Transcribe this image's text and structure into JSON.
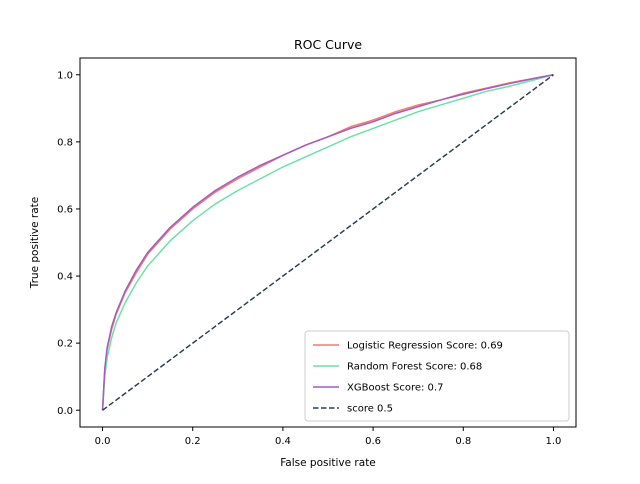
{
  "chart_data": {
    "type": "line",
    "title": "ROC Curve",
    "xlabel": "False positive rate",
    "ylabel": "True positive rate",
    "xlim": [
      -0.05,
      1.05
    ],
    "ylim": [
      -0.05,
      1.05
    ],
    "xticks": [
      "0.0",
      "0.2",
      "0.4",
      "0.6",
      "0.8",
      "1.0"
    ],
    "yticks": [
      "0.0",
      "0.2",
      "0.4",
      "0.6",
      "0.8",
      "1.0"
    ],
    "grid": false,
    "legend_position": "bottom-right",
    "series": [
      {
        "name": "Logistic Regression Score: 0.69",
        "color": "#f07c6c",
        "style": "solid",
        "points": [
          [
            0,
            0
          ],
          [
            0.005,
            0.12
          ],
          [
            0.01,
            0.18
          ],
          [
            0.02,
            0.24
          ],
          [
            0.03,
            0.285
          ],
          [
            0.05,
            0.35
          ],
          [
            0.075,
            0.41
          ],
          [
            0.1,
            0.465
          ],
          [
            0.15,
            0.54
          ],
          [
            0.2,
            0.6
          ],
          [
            0.25,
            0.65
          ],
          [
            0.3,
            0.69
          ],
          [
            0.35,
            0.725
          ],
          [
            0.4,
            0.76
          ],
          [
            0.45,
            0.79
          ],
          [
            0.5,
            0.815
          ],
          [
            0.55,
            0.845
          ],
          [
            0.6,
            0.865
          ],
          [
            0.65,
            0.89
          ],
          [
            0.7,
            0.91
          ],
          [
            0.75,
            0.925
          ],
          [
            0.8,
            0.945
          ],
          [
            0.85,
            0.96
          ],
          [
            0.9,
            0.975
          ],
          [
            0.95,
            0.988
          ],
          [
            1.0,
            1.0
          ]
        ]
      },
      {
        "name": "Random Forest Score: 0.68",
        "color": "#6ee0a8",
        "style": "solid",
        "points": [
          [
            0,
            0
          ],
          [
            0.005,
            0.1
          ],
          [
            0.01,
            0.155
          ],
          [
            0.02,
            0.215
          ],
          [
            0.03,
            0.26
          ],
          [
            0.05,
            0.32
          ],
          [
            0.075,
            0.38
          ],
          [
            0.1,
            0.43
          ],
          [
            0.15,
            0.505
          ],
          [
            0.2,
            0.565
          ],
          [
            0.25,
            0.615
          ],
          [
            0.3,
            0.655
          ],
          [
            0.35,
            0.69
          ],
          [
            0.4,
            0.725
          ],
          [
            0.45,
            0.755
          ],
          [
            0.5,
            0.785
          ],
          [
            0.55,
            0.815
          ],
          [
            0.6,
            0.84
          ],
          [
            0.65,
            0.865
          ],
          [
            0.7,
            0.89
          ],
          [
            0.75,
            0.91
          ],
          [
            0.8,
            0.93
          ],
          [
            0.85,
            0.95
          ],
          [
            0.9,
            0.965
          ],
          [
            0.95,
            0.982
          ],
          [
            1.0,
            1.0
          ]
        ]
      },
      {
        "name": "XGBoost Score: 0.7",
        "color": "#a25cc4",
        "style": "solid",
        "points": [
          [
            0,
            0
          ],
          [
            0.005,
            0.125
          ],
          [
            0.01,
            0.185
          ],
          [
            0.02,
            0.248
          ],
          [
            0.03,
            0.29
          ],
          [
            0.05,
            0.355
          ],
          [
            0.075,
            0.418
          ],
          [
            0.1,
            0.47
          ],
          [
            0.15,
            0.545
          ],
          [
            0.2,
            0.605
          ],
          [
            0.25,
            0.655
          ],
          [
            0.3,
            0.695
          ],
          [
            0.35,
            0.73
          ],
          [
            0.4,
            0.76
          ],
          [
            0.45,
            0.79
          ],
          [
            0.5,
            0.815
          ],
          [
            0.55,
            0.84
          ],
          [
            0.6,
            0.86
          ],
          [
            0.65,
            0.885
          ],
          [
            0.7,
            0.905
          ],
          [
            0.75,
            0.925
          ],
          [
            0.8,
            0.942
          ],
          [
            0.85,
            0.958
          ],
          [
            0.9,
            0.973
          ],
          [
            0.95,
            0.987
          ],
          [
            1.0,
            1.0
          ]
        ]
      },
      {
        "name": "score 0.5",
        "color": "#2e4057",
        "style": "dashed",
        "points": [
          [
            0,
            0
          ],
          [
            1,
            1
          ]
        ]
      }
    ]
  }
}
